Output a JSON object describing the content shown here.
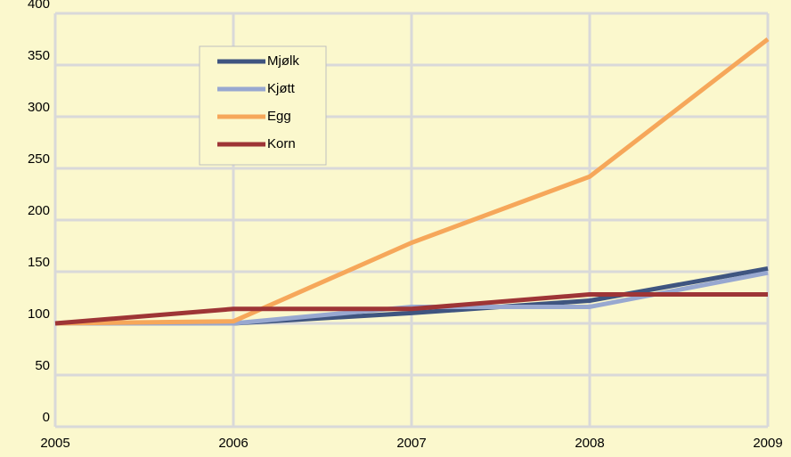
{
  "chart_data": {
    "type": "line",
    "x": [
      2005,
      2006,
      2007,
      2008,
      2009
    ],
    "xlim": [
      2005,
      2009
    ],
    "xticks": [
      2005,
      2006,
      2007,
      2008,
      2009
    ],
    "ylim": [
      0,
      400
    ],
    "yticks": [
      0,
      50,
      100,
      150,
      200,
      250,
      300,
      350,
      400
    ],
    "grid": true,
    "legend": "upper left",
    "series": [
      {
        "name": "Mjølk",
        "color": "#3f5580",
        "values": [
          100,
          100,
          110,
          122,
          153
        ]
      },
      {
        "name": "Kjøtt",
        "color": "#98a8d0",
        "values": [
          100,
          100,
          116,
          116,
          149
        ]
      },
      {
        "name": "Egg",
        "color": "#f6a75a",
        "values": [
          100,
          102,
          178,
          242,
          375
        ]
      },
      {
        "name": "Korn",
        "color": "#9e3536",
        "values": [
          100,
          114,
          114,
          128,
          128
        ]
      }
    ]
  }
}
